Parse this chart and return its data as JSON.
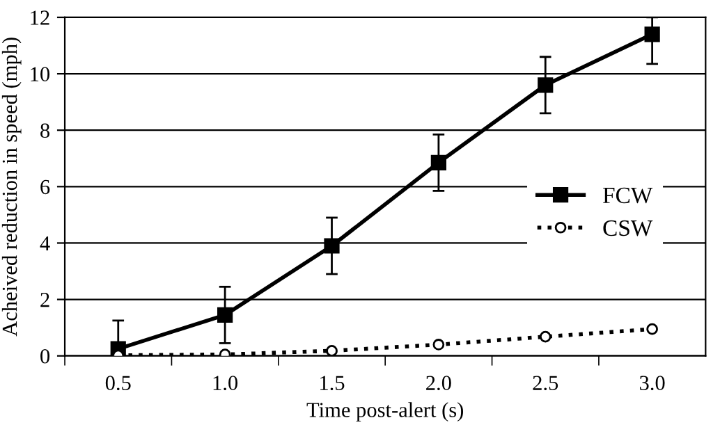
{
  "chart_data": {
    "type": "line",
    "xlabel": "Time post-alert (s)",
    "ylabel": "Acheived reduction in speed (mph)",
    "categories": [
      "0.5",
      "1.0",
      "1.5",
      "2.0",
      "2.5",
      "3.0"
    ],
    "series": [
      {
        "name": "FCW",
        "color": "#000000",
        "marker": "square",
        "line_style": "solid",
        "values": [
          0.25,
          1.45,
          3.9,
          6.85,
          9.6,
          11.4
        ],
        "errors": [
          1,
          1,
          1,
          1,
          1,
          [
            10.35,
            12
          ]
        ]
      },
      {
        "name": "CSW",
        "color": "#000000",
        "marker": "circle",
        "line_style": "dotted",
        "values": [
          0.02,
          0.05,
          0.18,
          0.4,
          0.68,
          0.95
        ]
      }
    ],
    "ylim": [
      0,
      12
    ],
    "yticks": [
      0,
      2,
      4,
      6,
      8,
      10,
      12
    ],
    "grid": "y",
    "legend": "right"
  }
}
